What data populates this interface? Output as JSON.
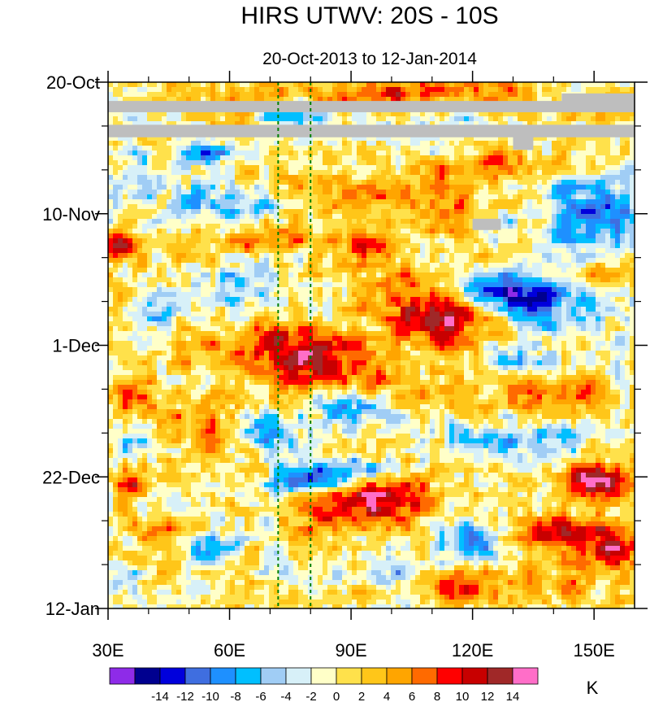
{
  "chart_data": {
    "type": "heatmap",
    "title": "HIRS UTWV: 20S - 10S",
    "subtitle": "20-Oct-2013 to 12-Jan-2014",
    "x_axis": {
      "range": [
        30,
        160
      ],
      "ticks": [
        30,
        60,
        90,
        120,
        150
      ],
      "tick_labels": [
        "30E",
        "60E",
        "90E",
        "120E",
        "150E"
      ],
      "minor_step": 10
    },
    "y_axis": {
      "range_days": [
        0,
        84
      ],
      "ticks_days": [
        0,
        21,
        42,
        63,
        84
      ],
      "tick_labels": [
        "20-Oct",
        "10-Nov",
        "1-Dec",
        "22-Dec",
        "12-Jan"
      ],
      "minor_step_days": 7,
      "direction": "downward"
    },
    "reference_lines_lon": [
      72,
      80
    ],
    "missing_data": [
      {
        "lon": [
          30,
          160
        ],
        "days": [
          3.0,
          4.8
        ]
      },
      {
        "lon": [
          30,
          160
        ],
        "days": [
          6.8,
          8.8
        ]
      },
      {
        "lon": [
          142,
          160
        ],
        "days": [
          1.8,
          3.5
        ]
      },
      {
        "lon": [
          130,
          135
        ],
        "days": [
          8.5,
          10.8
        ]
      },
      {
        "lon": [
          120,
          127
        ],
        "days": [
          21.8,
          23.6
        ]
      }
    ],
    "features": [
      {
        "lon": 33,
        "day": 26,
        "value": 10,
        "slon": 4,
        "sday": 1.6
      },
      {
        "lon": 66,
        "day": 25,
        "value": 6,
        "slon": 10,
        "sday": 2
      },
      {
        "lon": 95,
        "day": 26,
        "value": 9,
        "slon": 5,
        "sday": 1.8
      },
      {
        "lon": 112,
        "day": 22,
        "value": 5,
        "slon": 6,
        "sday": 2
      },
      {
        "lon": 113,
        "day": 38,
        "value": 12,
        "slon": 8,
        "sday": 3.2
      },
      {
        "lon": 102,
        "day": 34,
        "value": 6,
        "slon": 8,
        "sday": 3
      },
      {
        "lon": 76,
        "day": 42,
        "value": 10,
        "slon": 10,
        "sday": 2.4
      },
      {
        "lon": 83,
        "day": 46,
        "value": 9,
        "slon": 10,
        "sday": 2.4
      },
      {
        "lon": 52,
        "day": 41,
        "value": 4,
        "slon": 8,
        "sday": 3
      },
      {
        "lon": 38,
        "day": 51,
        "value": 8,
        "slon": 5,
        "sday": 2.2
      },
      {
        "lon": 56,
        "day": 55,
        "value": 5,
        "slon": 7,
        "sday": 3
      },
      {
        "lon": 97,
        "day": 66,
        "value": 12,
        "slon": 9,
        "sday": 3.2
      },
      {
        "lon": 82,
        "day": 69,
        "value": 6,
        "slon": 6,
        "sday": 3
      },
      {
        "lon": 150,
        "day": 64,
        "value": 14,
        "slon": 6,
        "sday": 2
      },
      {
        "lon": 145,
        "day": 72,
        "value": 12,
        "slon": 9,
        "sday": 1.8
      },
      {
        "lon": 154,
        "day": 75,
        "value": 8,
        "slon": 6,
        "sday": 2
      },
      {
        "lon": 118,
        "day": 81,
        "value": 8,
        "slon": 8,
        "sday": 2
      },
      {
        "lon": 140,
        "day": 50,
        "value": 8,
        "slon": 8,
        "sday": 2
      },
      {
        "lon": 105,
        "day": 50,
        "value": 5,
        "slon": 8,
        "sday": 2
      },
      {
        "lon": 35,
        "day": 64,
        "value": 9,
        "slon": 3,
        "sday": 1.4
      },
      {
        "lon": 65,
        "day": 3,
        "value": 6,
        "slon": 12,
        "sday": 2
      },
      {
        "lon": 100,
        "day": 2,
        "value": 8,
        "slon": 10,
        "sday": 1.8
      },
      {
        "lon": 125,
        "day": 2,
        "value": 5,
        "slon": 12,
        "sday": 2
      },
      {
        "lon": 110,
        "day": 17,
        "value": 5,
        "slon": 10,
        "sday": 2.5
      },
      {
        "lon": 90,
        "day": 18,
        "value": 6,
        "slon": 8,
        "sday": 2.5
      },
      {
        "lon": 47,
        "day": 72,
        "value": 5,
        "slon": 6,
        "sday": 2
      },
      {
        "lon": 140,
        "day": 80,
        "value": 5,
        "slon": 8,
        "sday": 2
      },
      {
        "lon": 128,
        "day": 13,
        "value": 4,
        "slon": 10,
        "sday": 2
      },
      {
        "lon": 153,
        "day": 31,
        "value": 4,
        "slon": 5,
        "sday": 2
      },
      {
        "lon": 55,
        "day": 11,
        "value": -10,
        "slon": 4,
        "sday": 1.2
      },
      {
        "lon": 75,
        "day": 5,
        "value": -10,
        "slon": 6,
        "sday": 1.4
      },
      {
        "lon": 126,
        "day": 33,
        "value": -12,
        "slon": 7,
        "sday": 1.6
      },
      {
        "lon": 137,
        "day": 35,
        "value": -9,
        "slon": 12,
        "sday": 3
      },
      {
        "lon": 148,
        "day": 22,
        "value": -8,
        "slon": 10,
        "sday": 3
      },
      {
        "lon": 155,
        "day": 18,
        "value": -6,
        "slon": 8,
        "sday": 3
      },
      {
        "lon": 90,
        "day": 62,
        "value": -14,
        "slon": 9,
        "sday": 1.4
      },
      {
        "lon": 78,
        "day": 64,
        "value": -11,
        "slon": 6,
        "sday": 1.4
      },
      {
        "lon": 70,
        "day": 56,
        "value": -10,
        "slon": 6,
        "sday": 2
      },
      {
        "lon": 120,
        "day": 73,
        "value": -10,
        "slon": 6,
        "sday": 2
      },
      {
        "lon": 55,
        "day": 74,
        "value": -11,
        "slon": 4,
        "sday": 1.6
      },
      {
        "lon": 42,
        "day": 37,
        "value": -8,
        "slon": 4,
        "sday": 2
      },
      {
        "lon": 92,
        "day": 52,
        "value": -9,
        "slon": 7,
        "sday": 2
      },
      {
        "lon": 125,
        "day": 57,
        "value": -7,
        "slon": 8,
        "sday": 2
      },
      {
        "lon": 35,
        "day": 57,
        "value": -6,
        "slon": 5,
        "sday": 2
      },
      {
        "lon": 63,
        "day": 33,
        "value": -5,
        "slon": 6,
        "sday": 3
      },
      {
        "lon": 40,
        "day": 15,
        "value": -5,
        "slon": 6,
        "sday": 3
      },
      {
        "lon": 140,
        "day": 58,
        "value": -5,
        "slon": 6,
        "sday": 2
      },
      {
        "lon": 102,
        "day": 78,
        "value": -6,
        "slon": 6,
        "sday": 2
      },
      {
        "lon": 130,
        "day": 44,
        "value": -5,
        "slon": 6,
        "sday": 2
      },
      {
        "lon": 60,
        "day": 20,
        "value": -7,
        "slon": 8,
        "sday": 2.5
      },
      {
        "lon": 34,
        "day": 80,
        "value": -5,
        "slon": 4,
        "sday": 2
      },
      {
        "lon": 115,
        "day": 7,
        "value": -4,
        "slon": 8,
        "sday": 2
      }
    ]
  },
  "colorbar": {
    "colors": [
      "#8e2be8",
      "#00008f",
      "#0000dc",
      "#3f6ee0",
      "#1e90ff",
      "#00bfff",
      "#a0cdf5",
      "#d7f0f8",
      "#ffffc8",
      "#ffe14b",
      "#ffc619",
      "#ffa500",
      "#ff6a00",
      "#ff0000",
      "#c80000",
      "#a02828",
      "#ff6ec8"
    ],
    "levels": [
      -16,
      -14,
      -12,
      -10,
      -8,
      -6,
      -4,
      -2,
      0,
      2,
      4,
      6,
      8,
      10,
      12,
      14
    ],
    "tick_labels": [
      "-14",
      "-12",
      "-10",
      "-8",
      "-6",
      "-4",
      "-2",
      "0",
      "2",
      "4",
      "6",
      "8",
      "10",
      "12",
      "14"
    ],
    "unit": "K",
    "missing_color": "#bebebe"
  }
}
